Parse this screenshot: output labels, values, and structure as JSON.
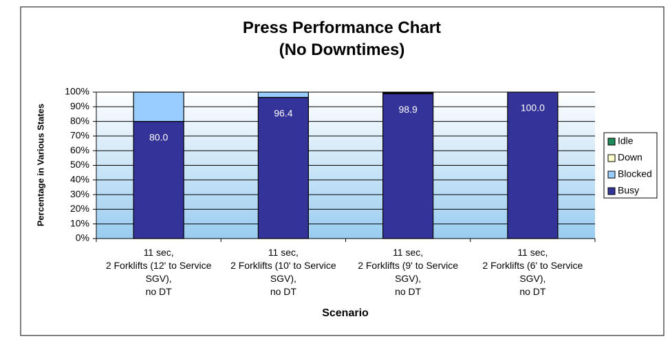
{
  "chart_data": {
    "type": "stacked_bar",
    "title": "Press Performance Chart\n(No Downtimes)",
    "x_label": "Scenario",
    "y_label": "Percentage in Various States",
    "categories": [
      "11 sec,\n2 Forklifts (12' to Service\nSGV),\nno DT",
      "11 sec,\n2 Forklifts (10' to Service\nSGV),\nno DT",
      "11 sec,\n2 Forklifts (9' to Service\nSGV),\nno DT",
      "11 sec,\n2 Forklifts (6' to Service\nSGV),\nno DT"
    ],
    "series": [
      {
        "name": "Busy",
        "color": "#333399",
        "values": [
          80.0,
          96.4,
          98.9,
          100.0
        ],
        "value_labels": [
          "80.0",
          "96.4",
          "98.9",
          "100.0"
        ]
      },
      {
        "name": "Blocked",
        "color": "#99ccff",
        "values": [
          20.0,
          3.6,
          0.6,
          0
        ]
      },
      {
        "name": "Down",
        "color": "#ffffcc",
        "values": [
          0,
          0,
          0,
          0
        ]
      },
      {
        "name": "Idle",
        "color": "#1f8a5c",
        "values": [
          0,
          0,
          0.5,
          0
        ]
      }
    ],
    "ylim": [
      0,
      100
    ],
    "yticks": [
      {
        "value": 0,
        "label": "0%"
      },
      {
        "value": 10,
        "label": "10%"
      },
      {
        "value": 20,
        "label": "20%"
      },
      {
        "value": 30,
        "label": "30%"
      },
      {
        "value": 40,
        "label": "40%"
      },
      {
        "value": 50,
        "label": "50%"
      },
      {
        "value": 60,
        "label": "60%"
      },
      {
        "value": 70,
        "label": "70%"
      },
      {
        "value": 80,
        "label": "80%"
      },
      {
        "value": 90,
        "label": "90%"
      },
      {
        "value": 100,
        "label": "100%"
      }
    ],
    "grid": true,
    "legend": "right"
  }
}
